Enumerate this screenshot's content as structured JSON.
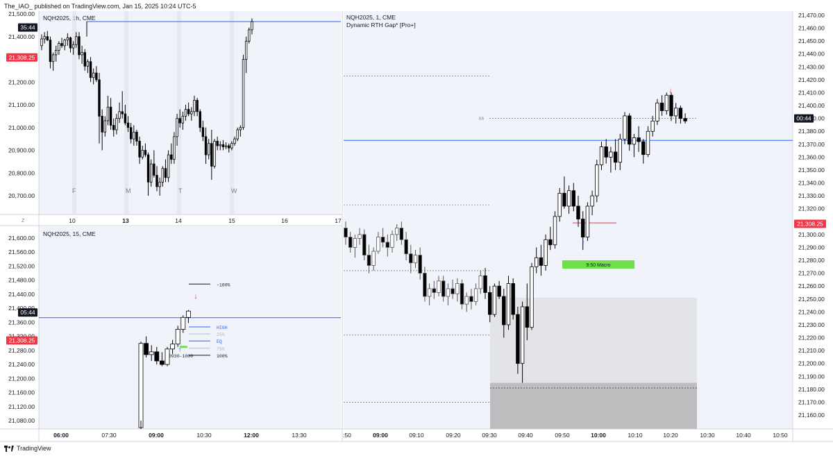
{
  "header": {
    "text": "The_IAO_ published on TradingView.com, Jan 15, 2025 10:24 UTC-5"
  },
  "footer": {
    "brand": "TradingView"
  },
  "colors": {
    "up": "#ffffff",
    "down": "#000000",
    "blue": "#2962ff",
    "red": "#f23645",
    "green": "#6fe04a",
    "pane_bg": "#f0f3fa"
  },
  "chart_data": [
    {
      "id": "pane-1h",
      "type": "candlestick",
      "title": "NQH2025, 1h, CME",
      "y_ticks": [
        "21,500.00",
        "21,400.00",
        "21,300.00",
        "21,200.00",
        "21,100.00",
        "21,000.00",
        "20,900.00",
        "20,800.00",
        "20,700.00"
      ],
      "ylim": [
        20660,
        21510
      ],
      "x_ticks": [
        "10",
        "13",
        "14",
        "15",
        "16",
        "17"
      ],
      "x_tick_bold": "13",
      "day_labels": [
        "F",
        "M",
        "T",
        "W"
      ],
      "z_label": "Z",
      "price_tag": "21,308.25",
      "timer_tag": "35:44",
      "level_line": 21466,
      "ohlc": [
        [
          21360,
          21410,
          21340,
          21390
        ],
        [
          21390,
          21420,
          21370,
          21400
        ],
        [
          21400,
          21425,
          21380,
          21385
        ],
        [
          21385,
          21400,
          21260,
          21290
        ],
        [
          21290,
          21330,
          21250,
          21320
        ],
        [
          21320,
          21360,
          21290,
          21340
        ],
        [
          21340,
          21380,
          21320,
          21370
        ],
        [
          21370,
          21395,
          21350,
          21360
        ],
        [
          21360,
          21390,
          21340,
          21385
        ],
        [
          21385,
          21415,
          21360,
          21395
        ],
        [
          21395,
          21400,
          21330,
          21350
        ],
        [
          21350,
          21380,
          21320,
          21365
        ],
        [
          21365,
          21420,
          21350,
          21400
        ],
        [
          21400,
          21420,
          21300,
          21320
        ],
        [
          21320,
          21360,
          21280,
          21330
        ],
        [
          21330,
          21345,
          21250,
          21270
        ],
        [
          21270,
          21300,
          21240,
          21290
        ],
        [
          21290,
          21310,
          21200,
          21220
        ],
        [
          21220,
          21260,
          21190,
          21240
        ],
        [
          21240,
          21270,
          21200,
          21210
        ],
        [
          21210,
          21240,
          20930,
          21050
        ],
        [
          21050,
          21080,
          20900,
          20980
        ],
        [
          20980,
          21050,
          20960,
          21030
        ],
        [
          21030,
          21140,
          21010,
          21090
        ],
        [
          21090,
          21130,
          20990,
          21010
        ],
        [
          21010,
          21040,
          20960,
          20990
        ],
        [
          20990,
          21060,
          20970,
          21040
        ],
        [
          21040,
          21110,
          21020,
          21070
        ],
        [
          21070,
          21160,
          21040,
          21060
        ],
        [
          21060,
          21100,
          21010,
          21020
        ],
        [
          21020,
          21050,
          20980,
          21000
        ],
        [
          21000,
          21020,
          20930,
          20950
        ],
        [
          20950,
          21010,
          20920,
          20980
        ],
        [
          20980,
          20990,
          20920,
          20940
        ],
        [
          20940,
          20960,
          20840,
          20870
        ],
        [
          20870,
          20920,
          20860,
          20900
        ],
        [
          20900,
          20930,
          20870,
          20880
        ],
        [
          20880,
          20890,
          20700,
          20760
        ],
        [
          20760,
          20860,
          20740,
          20840
        ],
        [
          20840,
          20900,
          20780,
          20790
        ],
        [
          20790,
          20830,
          20720,
          20740
        ],
        [
          20740,
          20780,
          20700,
          20760
        ],
        [
          20760,
          20830,
          20740,
          20820
        ],
        [
          20820,
          20860,
          20760,
          20780
        ],
        [
          20780,
          20900,
          20760,
          20880
        ],
        [
          20880,
          20930,
          20840,
          20860
        ],
        [
          20860,
          20980,
          20840,
          20960
        ],
        [
          20960,
          21060,
          20920,
          21040
        ],
        [
          21040,
          21080,
          21000,
          21020
        ],
        [
          21020,
          21070,
          20990,
          21050
        ],
        [
          21050,
          21100,
          21030,
          21080
        ],
        [
          21080,
          21110,
          21050,
          21060
        ],
        [
          21060,
          21090,
          21030,
          21070
        ],
        [
          21070,
          21140,
          21050,
          21120
        ],
        [
          21120,
          21130,
          21050,
          21070
        ],
        [
          21070,
          21080,
          20980,
          21000
        ],
        [
          21000,
          21030,
          20940,
          20960
        ],
        [
          20960,
          21000,
          20840,
          20880
        ],
        [
          20880,
          20950,
          20860,
          20930
        ],
        [
          20930,
          20990,
          20770,
          20830
        ],
        [
          20830,
          20950,
          20820,
          20940
        ],
        [
          20940,
          20960,
          20900,
          20920
        ],
        [
          20920,
          20940,
          20900,
          20925
        ],
        [
          20925,
          20945,
          20900,
          20915
        ],
        [
          20915,
          20935,
          20905,
          20920
        ],
        [
          20920,
          20930,
          20890,
          20910
        ],
        [
          20910,
          20940,
          20900,
          20930
        ],
        [
          20930,
          20960,
          20920,
          20950
        ],
        [
          20950,
          21000,
          20940,
          20990
        ],
        [
          20990,
          21010,
          20960,
          21000
        ],
        [
          21000,
          21320,
          20990,
          21300
        ],
        [
          21300,
          21400,
          21240,
          21380
        ],
        [
          21380,
          21440,
          21370,
          21430
        ],
        [
          21430,
          21480,
          21410,
          21466
        ]
      ]
    },
    {
      "id": "pane-15",
      "type": "candlestick",
      "title": "NQH2025, 15, CME",
      "y_ticks": [
        "21,600.00",
        "21,560.00",
        "21,520.00",
        "21,480.00",
        "21,440.00",
        "21,400.00",
        "21,360.00",
        "21,320.00",
        "21,280.00",
        "21,240.00",
        "21,200.00",
        "21,160.00",
        "21,120.00",
        "21,080.00"
      ],
      "ylim": [
        21060,
        21620
      ],
      "x_ticks": [
        "06:00",
        "07:30",
        "09:00",
        "10:30",
        "12:00",
        "13:30"
      ],
      "x_tick_bold": [
        "06:00",
        "09:00",
        "12:00"
      ],
      "price_tag": "21,308.25",
      "timer_tag": "05:44",
      "level_line": 21373,
      "levels": [
        {
          "label": "-100%",
          "value": 21469,
          "color": "#131722"
        },
        {
          "label": "HIGH",
          "value": 21347,
          "color": "#2962ff"
        },
        {
          "label": "25%",
          "value": 21327,
          "color": "#b2b5be"
        },
        {
          "label": "EQ",
          "value": 21307,
          "color": "#2962ff"
        },
        {
          "label": "75%",
          "value": 21286,
          "color": "#b2b5be"
        },
        {
          "label": "100%",
          "value": 21266,
          "color": "#131722"
        },
        {
          "label": "0930-1000",
          "value": 21266,
          "color": "#131722"
        }
      ],
      "ohlc": [
        [
          21060,
          21305,
          21060,
          21300
        ],
        [
          21300,
          21320,
          21260,
          21268
        ],
        [
          21268,
          21295,
          21250,
          21276
        ],
        [
          21276,
          21290,
          21240,
          21250
        ],
        [
          21250,
          21275,
          21235,
          21240
        ],
        [
          21240,
          21290,
          21235,
          21284
        ],
        [
          21284,
          21310,
          21270,
          21298
        ],
        [
          21298,
          21350,
          21290,
          21340
        ],
        [
          21340,
          21380,
          21330,
          21374
        ],
        [
          21374,
          21395,
          21358,
          21392
        ]
      ]
    },
    {
      "id": "pane-1m",
      "type": "candlestick",
      "title": "NQH2025, 1, CME",
      "indicator": "Dynamic RTH Gap* [Pro+]",
      "y_ticks": [
        "21,470.00",
        "21,460.00",
        "21,450.00",
        "21,440.00",
        "21,430.00",
        "21,420.00",
        "21,410.00",
        "21,400.00",
        "21,390.00",
        "21,380.00",
        "21,370.00",
        "21,360.00",
        "21,350.00",
        "21,340.00",
        "21,330.00",
        "21,320.00",
        "21,310.00",
        "21,300.00",
        "21,290.00",
        "21,280.00",
        "21,270.00",
        "21,260.00",
        "21,250.00",
        "21,240.00",
        "21,230.00",
        "21,220.00",
        "21,210.00",
        "21,200.00",
        "21,190.00",
        "21,180.00",
        "21,170.00",
        "21,160.00"
      ],
      "ylim": [
        21150,
        21475
      ],
      "x_ticks": [
        "09:00",
        "09:10",
        "09:20",
        "09:30",
        "09:40",
        "09:50",
        "10:00",
        "10:10",
        "10:20",
        "10:30",
        "10:40",
        "10:50"
      ],
      "x_tick_bold": [
        "09:00",
        "10:00"
      ],
      "x_partial_label": ":50",
      "price_tag": "21,308.25",
      "timer_tag": "00:44",
      "level_line": 21373,
      "fib_label": "0.5",
      "macro_label": "9:50 Macro",
      "ohlc": [
        [
          21305,
          21310,
          21292,
          21298
        ],
        [
          21298,
          21302,
          21286,
          21290
        ],
        [
          21290,
          21300,
          21282,
          21297
        ],
        [
          21297,
          21305,
          21292,
          21300
        ],
        [
          21300,
          21304,
          21280,
          21284
        ],
        [
          21284,
          21292,
          21270,
          21276
        ],
        [
          21276,
          21290,
          21272,
          21287
        ],
        [
          21287,
          21302,
          21285,
          21298
        ],
        [
          21298,
          21305,
          21290,
          21294
        ],
        [
          21294,
          21300,
          21283,
          21290
        ],
        [
          21290,
          21303,
          21286,
          21300
        ],
        [
          21300,
          21308,
          21295,
          21305
        ],
        [
          21305,
          21310,
          21292,
          21296
        ],
        [
          21296,
          21302,
          21280,
          21285
        ],
        [
          21285,
          21292,
          21270,
          21278
        ],
        [
          21278,
          21288,
          21274,
          21284
        ],
        [
          21284,
          21290,
          21265,
          21270
        ],
        [
          21270,
          21275,
          21248,
          21252
        ],
        [
          21252,
          21262,
          21245,
          21258
        ],
        [
          21258,
          21264,
          21250,
          21255
        ],
        [
          21255,
          21268,
          21252,
          21264
        ],
        [
          21264,
          21268,
          21248,
          21252
        ],
        [
          21252,
          21262,
          21245,
          21258
        ],
        [
          21258,
          21265,
          21250,
          21254
        ],
        [
          21254,
          21266,
          21248,
          21262
        ],
        [
          21262,
          21265,
          21242,
          21246
        ],
        [
          21246,
          21255,
          21240,
          21252
        ],
        [
          21252,
          21258,
          21242,
          21248
        ],
        [
          21248,
          21262,
          21245,
          21258
        ],
        [
          21258,
          21272,
          21254,
          21268
        ],
        [
          21268,
          21274,
          21250,
          21255
        ],
        [
          21255,
          21260,
          21232,
          21238
        ],
        [
          21238,
          21262,
          21236,
          21260
        ],
        [
          21260,
          21264,
          21250,
          21252
        ],
        [
          21252,
          21258,
          21220,
          21230
        ],
        [
          21230,
          21268,
          21226,
          21262
        ],
        [
          21262,
          21266,
          21234,
          21238
        ],
        [
          21238,
          21244,
          21192,
          21200
        ],
        [
          21200,
          21248,
          21185,
          21244
        ],
        [
          21244,
          21262,
          21218,
          21228
        ],
        [
          21228,
          21278,
          21226,
          21275
        ],
        [
          21275,
          21290,
          21270,
          21282
        ],
        [
          21282,
          21292,
          21268,
          21276
        ],
        [
          21276,
          21300,
          21272,
          21296
        ],
        [
          21296,
          21306,
          21288,
          21292
        ],
        [
          21292,
          21318,
          21289,
          21314
        ],
        [
          21314,
          21336,
          21310,
          21332
        ],
        [
          21332,
          21345,
          21320,
          21322
        ],
        [
          21322,
          21338,
          21316,
          21334
        ],
        [
          21334,
          21340,
          21318,
          21322
        ],
        [
          21322,
          21330,
          21306,
          21312
        ],
        [
          21312,
          21318,
          21288,
          21298
        ],
        [
          21298,
          21325,
          21295,
          21322
        ],
        [
          21322,
          21334,
          21315,
          21330
        ],
        [
          21330,
          21358,
          21325,
          21354
        ],
        [
          21354,
          21372,
          21350,
          21368
        ],
        [
          21368,
          21374,
          21355,
          21360
        ],
        [
          21360,
          21368,
          21348,
          21364
        ],
        [
          21364,
          21374,
          21350,
          21356
        ],
        [
          21356,
          21378,
          21350,
          21374
        ],
        [
          21374,
          21395,
          21370,
          21392
        ],
        [
          21392,
          21394,
          21365,
          21370
        ],
        [
          21370,
          21378,
          21360,
          21375
        ],
        [
          21375,
          21384,
          21364,
          21372
        ],
        [
          21372,
          21374,
          21355,
          21362
        ],
        [
          21362,
          21384,
          21360,
          21380
        ],
        [
          21380,
          21392,
          21376,
          21388
        ],
        [
          21388,
          21405,
          21385,
          21402
        ],
        [
          21402,
          21408,
          21392,
          21396
        ],
        [
          21396,
          21410,
          21393,
          21408
        ],
        [
          21408,
          21410,
          21388,
          21392
        ],
        [
          21392,
          21402,
          21386,
          21398
        ],
        [
          21398,
          21400,
          21386,
          21390
        ],
        [
          21390,
          21394,
          21386,
          21388
        ]
      ]
    }
  ]
}
